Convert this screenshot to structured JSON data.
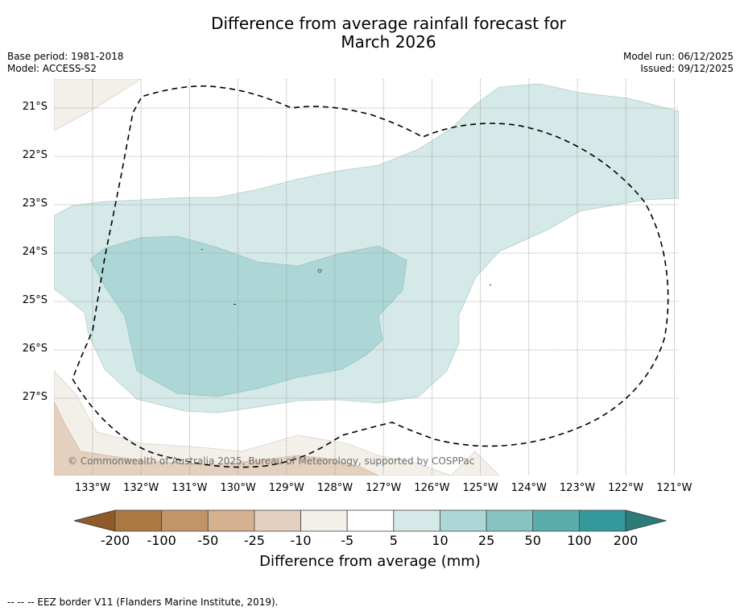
{
  "title": {
    "line1": "Difference from average rainfall forecast for",
    "line2": "March 2026"
  },
  "meta_left": {
    "base_period": "Base period: 1981-2018",
    "model": "Model: ACCESS-S2"
  },
  "meta_right": {
    "model_run": "Model run: 06/12/2025",
    "issued": "Issued: 09/12/2025"
  },
  "map": {
    "latitude_labels": [
      "21°S",
      "22°S",
      "23°S",
      "24°S",
      "25°S",
      "26°S",
      "27°S"
    ],
    "longitude_labels": [
      "133°W",
      "132°W",
      "131°W",
      "130°W",
      "129°W",
      "128°W",
      "127°W",
      "126°W",
      "125°W",
      "124°W",
      "123°W",
      "122°W",
      "121°W"
    ],
    "lon_range": [
      -133.8,
      -120.9
    ],
    "lat_range": [
      -28.8,
      -20.6
    ],
    "copyright": "© Commonwealth of Australia 2025, Bureau of Meteorology, supported by COSPPac",
    "border_style": "dashed",
    "regions": [
      {
        "name": "contour-5-to-10-main",
        "category": "5 to 10"
      },
      {
        "name": "contour-10-to-25",
        "category": "10 to 25"
      },
      {
        "name": "contour-minus10-to-minus5-nw",
        "category": "-10 to -5"
      },
      {
        "name": "contour-minus10-to-minus5-sw",
        "category": "-10 to -5"
      },
      {
        "name": "contour-minus25-to-minus10-sw",
        "category": "-25 to -10"
      }
    ]
  },
  "colorbar": {
    "ticks": [
      "-200",
      "-100",
      "-50",
      "-25",
      "-10",
      "-5",
      "5",
      "10",
      "25",
      "50",
      "100",
      "200"
    ],
    "colors": [
      "#ab7843",
      "#c29569",
      "#d4b290",
      "#e4d0be",
      "#f3efe9",
      "#ffffff",
      "#d5e9e8",
      "#add7d6",
      "#86c3c1",
      "#5badab",
      "#33999a"
    ],
    "extend_low_color": "#8e5a28",
    "extend_high_color": "#2b7b79",
    "label": "Difference from average (mm)"
  },
  "footer": {
    "legend_text": "--  --  -- EEZ border V11 (Flanders Marine Institute, 2019)."
  }
}
